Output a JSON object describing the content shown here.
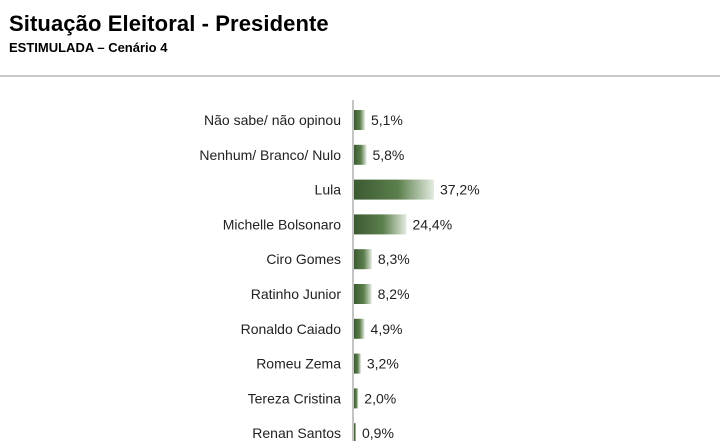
{
  "title": "Situação Eleitoral - Presidente",
  "subtitle": "ESTIMULADA – Cenário 4",
  "colors": {
    "bar_dark": "#3c5a32",
    "bar_mid": "#5b7f4c",
    "bar_light": "#e3ebdf",
    "axis": "#8a8a8a",
    "divider": "#c8c8c8"
  },
  "chart_data": {
    "type": "bar",
    "orientation": "horizontal",
    "title": "",
    "xlabel": "",
    "ylabel": "",
    "xlim": [
      0,
      40
    ],
    "grid": false,
    "categories": [
      "Não sabe/ não opinou",
      "Nenhum/ Branco/ Nulo",
      "Lula",
      "Michelle Bolsonaro",
      "Ciro Gomes",
      "Ratinho Junior",
      "Ronaldo Caiado",
      "Romeu Zema",
      "Tereza Cristina",
      "Renan Santos"
    ],
    "values": [
      5.1,
      5.8,
      37.2,
      24.4,
      8.3,
      8.2,
      4.9,
      3.2,
      2.0,
      0.9
    ],
    "data_labels": [
      "5,1%",
      "5,8%",
      "37,2%",
      "24,4%",
      "8,3%",
      "8,2%",
      "4,9%",
      "3,2%",
      "2,0%",
      "0,9%"
    ]
  }
}
